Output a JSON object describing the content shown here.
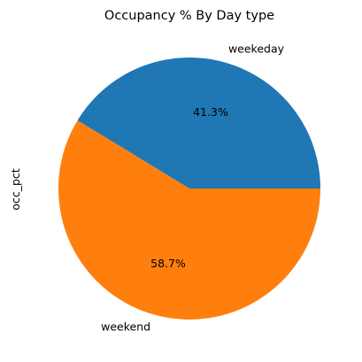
{
  "chart_data": {
    "type": "pie",
    "title": "Occupancy % By Day type",
    "ylabel": "occ_pct",
    "slices": [
      {
        "label": "weekeday",
        "value": 41.3,
        "pct_label": "41.3%",
        "color": "#1f77b4"
      },
      {
        "label": "weekend",
        "value": 58.7,
        "pct_label": "58.7%",
        "color": "#ff7f0e"
      }
    ],
    "start_angle_deg": 0,
    "direction": "counterclockwise"
  }
}
